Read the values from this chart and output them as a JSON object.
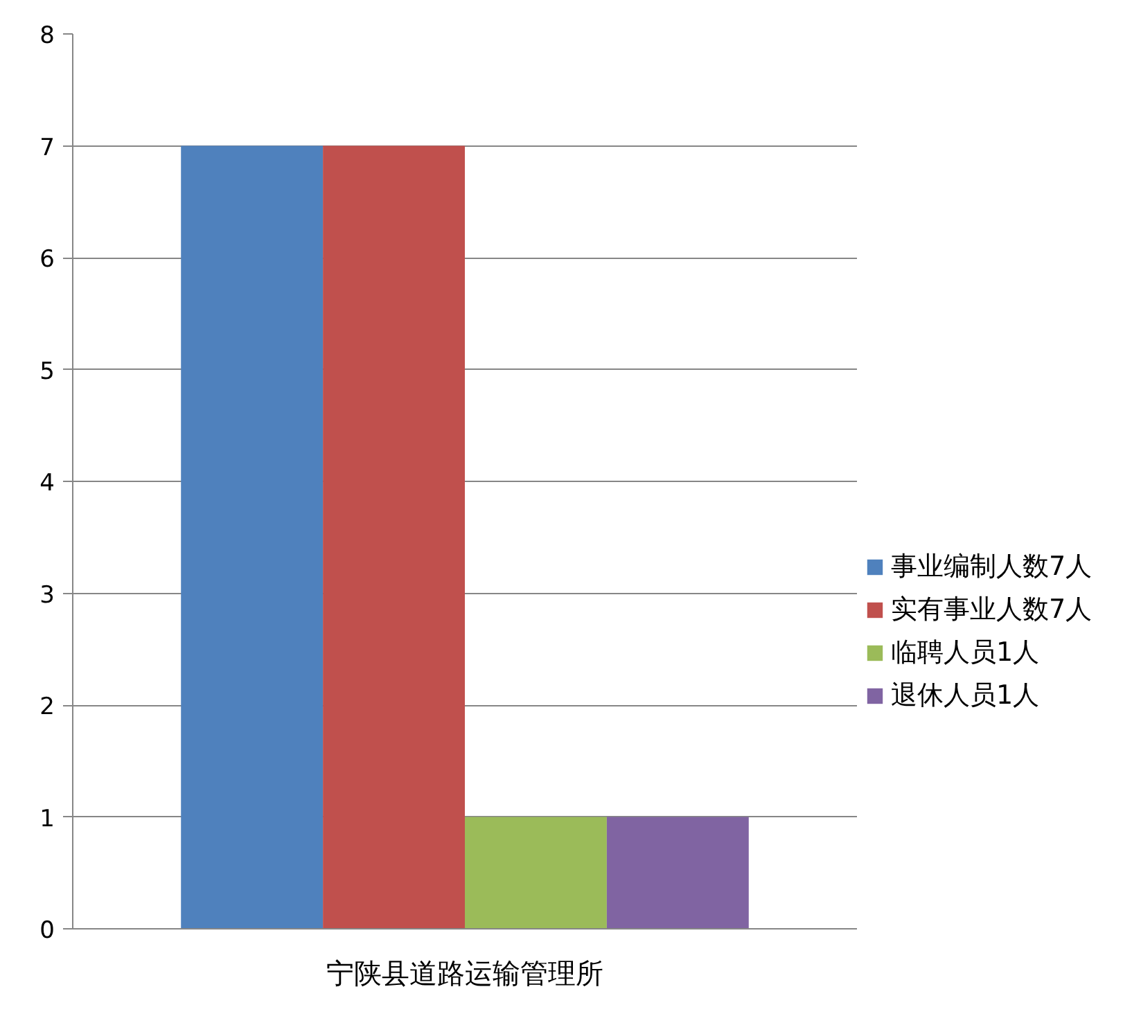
{
  "chart_data": {
    "type": "bar",
    "categories": [
      "宁陕县道路运输管理所"
    ],
    "series": [
      {
        "name": "事业编制人数7人",
        "color": "#4f81bd",
        "values": [
          7
        ]
      },
      {
        "name": "实有事业人数7人",
        "color": "#c0504d",
        "values": [
          7
        ]
      },
      {
        "name": "临聘人员1人",
        "color": "#9bbb59",
        "values": [
          1
        ]
      },
      {
        "name": "退休人员1人",
        "color": "#8064a2",
        "values": [
          1
        ]
      }
    ],
    "ylim": [
      0,
      8
    ],
    "yticks": [
      0,
      1,
      2,
      3,
      4,
      5,
      6,
      7,
      8
    ],
    "grid": "y",
    "legend": "right"
  }
}
